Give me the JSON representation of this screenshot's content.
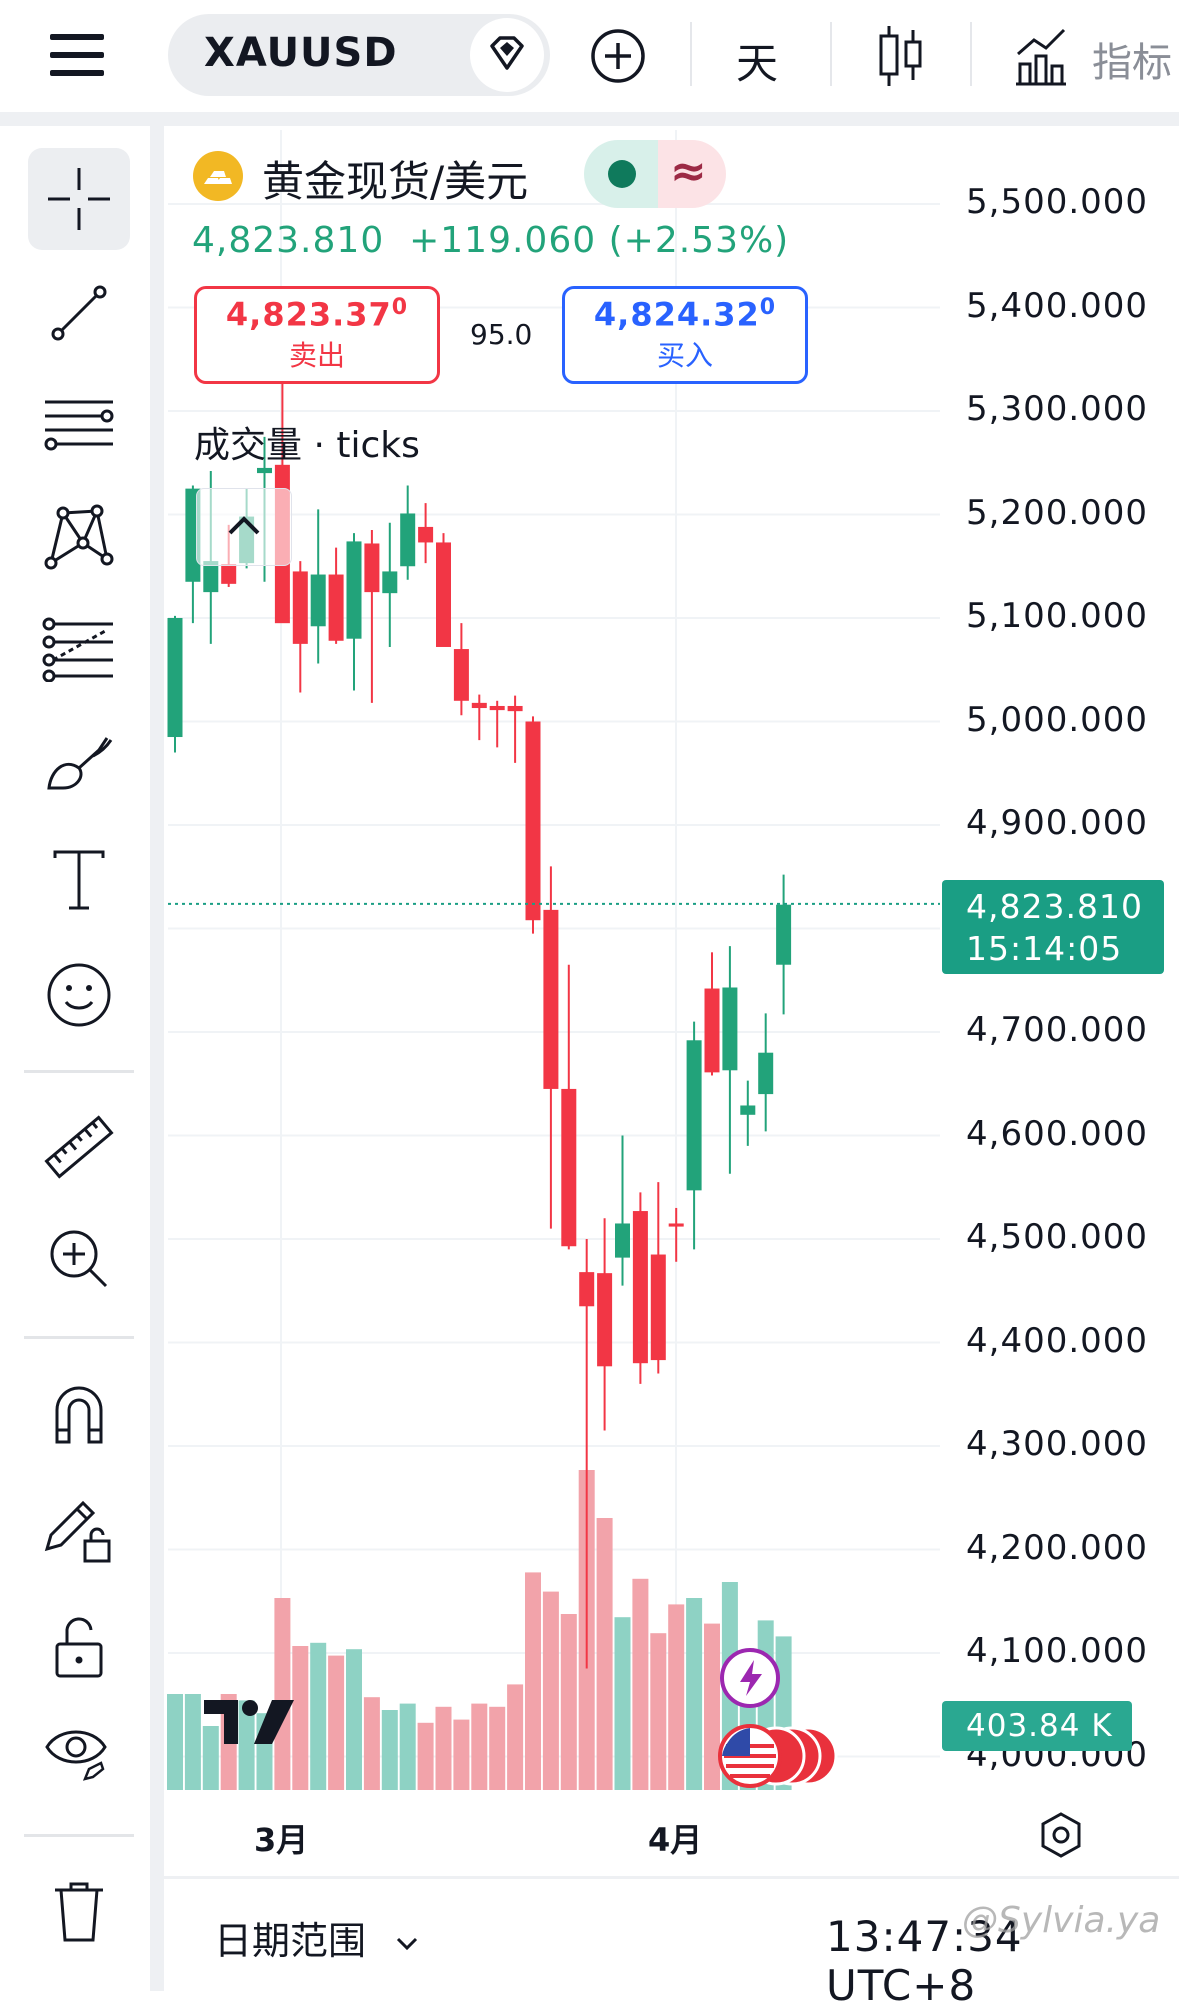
{
  "toolbar": {
    "symbol": "XAUUSD",
    "interval": "天",
    "indicators_label": "指标"
  },
  "instrument": {
    "name": "黄金现货/美元",
    "last_price": "4,823.810",
    "change": "+119.060",
    "change_pct": "(+2.53%)",
    "sell_price": "4,823.37",
    "sell_price_sup": "0",
    "sell_label": "卖出",
    "buy_price": "4,824.32",
    "buy_price_sup": "0",
    "buy_label": "买入",
    "spread": "95.0",
    "status_symbol": "≈"
  },
  "volume_label": "成交量 · ticks",
  "price_axis": [
    "5,500.000",
    "5,400.000",
    "5,300.000",
    "5,200.000",
    "5,100.000",
    "5,000.000",
    "4,900.000",
    "4,700.000",
    "4,600.000",
    "4,500.000",
    "4,400.000",
    "4,300.000",
    "4,200.000",
    "4,100.000",
    "4,000.000"
  ],
  "current_price_tag": {
    "price": "4,823.810",
    "countdown": "15:14:05"
  },
  "volume_tag": "403.84 K",
  "time_axis": [
    "3月",
    "4月"
  ],
  "bottom": {
    "date_range_label": "日期范围",
    "clock": "13:47:34 UTC+8",
    "watermark": "@Sylvia.ya"
  },
  "colors": {
    "up": "#22a37a",
    "down": "#f23645",
    "up_volume": "#8ed2c4",
    "down_volume": "#f2a3aa",
    "sell_border": "#f23645",
    "buy_border": "#2962ff",
    "price_tag_bg": "#1a9e84"
  },
  "icons": [
    "menu-icon",
    "diamond-icon",
    "plus-circle-icon",
    "candlestick-icon",
    "indicators-icon",
    "crosshair-icon",
    "trendline-icon",
    "parallel-lines-icon",
    "pattern-icon",
    "fib-icon",
    "brush-icon",
    "text-icon",
    "emoji-icon",
    "ruler-icon",
    "zoom-in-icon",
    "magnet-icon",
    "lock-drawing-icon",
    "unlock-icon",
    "eye-icon",
    "trash-icon",
    "settings-icon",
    "flash-icon",
    "us-flag-icon"
  ],
  "chart_data": {
    "type": "candlestick",
    "symbol": "XAUUSD",
    "interval": "天",
    "ylim": [
      3980,
      5540
    ],
    "x_ticks": [
      "3月",
      "4月"
    ],
    "candles": [
      {
        "o": 4985,
        "h": 5102,
        "l": 4970,
        "c": 5100
      },
      {
        "o": 5135,
        "h": 5228,
        "l": 5095,
        "c": 5225
      },
      {
        "o": 5125,
        "h": 5242,
        "l": 5075,
        "c": 5155
      },
      {
        "o": 5152,
        "h": 5190,
        "l": 5130,
        "c": 5133
      },
      {
        "o": 5153,
        "h": 5225,
        "l": 5148,
        "c": 5198
      },
      {
        "o": 5240,
        "h": 5275,
        "l": 5135,
        "c": 5245
      },
      {
        "o": 5248,
        "h": 5340,
        "l": 5102,
        "c": 5095
      },
      {
        "o": 5145,
        "h": 5155,
        "l": 5028,
        "c": 5075
      },
      {
        "o": 5092,
        "h": 5205,
        "l": 5056,
        "c": 5142
      },
      {
        "o": 5142,
        "h": 5168,
        "l": 5075,
        "c": 5078
      },
      {
        "o": 5080,
        "h": 5182,
        "l": 5030,
        "c": 5174
      },
      {
        "o": 5172,
        "h": 5185,
        "l": 5018,
        "c": 5125
      },
      {
        "o": 5124,
        "h": 5192,
        "l": 5072,
        "c": 5145
      },
      {
        "o": 5150,
        "h": 5228,
        "l": 5137,
        "c": 5201
      },
      {
        "o": 5188,
        "h": 5211,
        "l": 5153,
        "c": 5173
      },
      {
        "o": 5173,
        "h": 5182,
        "l": 5075,
        "c": 5072
      },
      {
        "o": 5070,
        "h": 5095,
        "l": 5006,
        "c": 5020
      },
      {
        "o": 5018,
        "h": 5026,
        "l": 4982,
        "c": 5013
      },
      {
        "o": 5015,
        "h": 5020,
        "l": 4975,
        "c": 5011
      },
      {
        "o": 5015,
        "h": 5025,
        "l": 4960,
        "c": 5010
      },
      {
        "o": 5000,
        "h": 5005,
        "l": 4795,
        "c": 4808
      },
      {
        "o": 4818,
        "h": 4860,
        "l": 4510,
        "c": 4645
      },
      {
        "o": 4645,
        "h": 4765,
        "l": 4490,
        "c": 4493
      },
      {
        "o": 4468,
        "h": 4500,
        "l": 4085,
        "c": 4435
      },
      {
        "o": 4467,
        "h": 4520,
        "l": 4315,
        "c": 4377
      },
      {
        "o": 4482,
        "h": 4600,
        "l": 4455,
        "c": 4515
      },
      {
        "o": 4527,
        "h": 4545,
        "l": 4360,
        "c": 4380
      },
      {
        "o": 4485,
        "h": 4555,
        "l": 4370,
        "c": 4383
      },
      {
        "o": 4515,
        "h": 4530,
        "l": 4478,
        "c": 4512
      },
      {
        "o": 4547,
        "h": 4710,
        "l": 4490,
        "c": 4692
      },
      {
        "o": 4742,
        "h": 4777,
        "l": 4658,
        "c": 4661
      },
      {
        "o": 4663,
        "h": 4783,
        "l": 4563,
        "c": 4743
      },
      {
        "o": 4620,
        "h": 4653,
        "l": 4590,
        "c": 4629
      },
      {
        "o": 4640,
        "h": 4718,
        "l": 4604,
        "c": 4680
      },
      {
        "o": 4765,
        "h": 4852,
        "l": 4717,
        "c": 4823
      }
    ],
    "volume_relative": [
      0.3,
      0.3,
      0.2,
      0.3,
      0.28,
      0.24,
      0.6,
      0.45,
      0.46,
      0.42,
      0.44,
      0.29,
      0.25,
      0.27,
      0.21,
      0.26,
      0.22,
      0.27,
      0.26,
      0.33,
      0.68,
      0.62,
      0.55,
      1.0,
      0.85,
      0.54,
      0.66,
      0.49,
      0.58,
      0.6,
      0.52,
      0.65,
      0.43,
      0.53,
      0.48
    ],
    "current_price": 4823.81
  }
}
